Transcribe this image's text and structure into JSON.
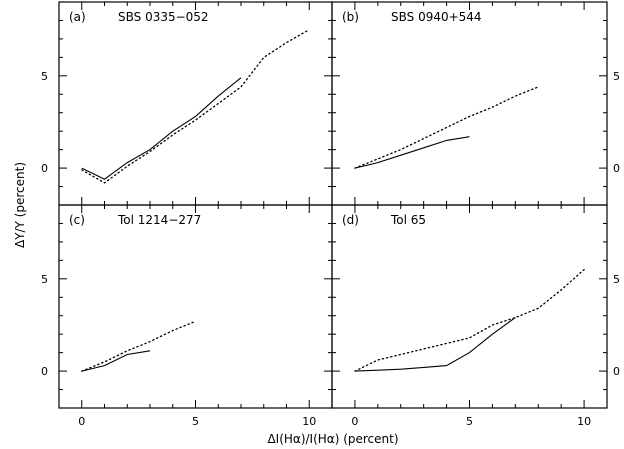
{
  "chart_data": {
    "type": "line",
    "xlabel": "ΔI(Hα)/I(Hα) (percent)",
    "ylabel": "ΔY/Y (percent)",
    "xlim": [
      -1,
      11
    ],
    "ylim": [
      -2,
      9
    ],
    "xticks": [
      0,
      5,
      10
    ],
    "yticks": [
      0,
      5
    ],
    "grid": false,
    "panels": [
      {
        "tag": "(a)",
        "title": "SBS 0335−052",
        "series": [
          {
            "style": "solid",
            "x": [
              0,
              1,
              2,
              3,
              4,
              5,
              6,
              7
            ],
            "y": [
              0,
              -0.6,
              0.3,
              1.0,
              2.0,
              2.8,
              3.9,
              4.9
            ]
          },
          {
            "style": "dotted",
            "x": [
              0,
              1,
              2,
              3,
              4,
              5,
              6,
              7,
              8,
              9,
              10
            ],
            "y": [
              -0.1,
              -0.8,
              0.1,
              0.9,
              1.8,
              2.6,
              3.5,
              4.4,
              6.0,
              6.8,
              7.5
            ]
          }
        ]
      },
      {
        "tag": "(b)",
        "title": "SBS 0940+544",
        "series": [
          {
            "style": "solid",
            "x": [
              0,
              1,
              2,
              3,
              4,
              5
            ],
            "y": [
              0,
              0.3,
              0.7,
              1.1,
              1.5,
              1.7
            ]
          },
          {
            "style": "dotted",
            "x": [
              0,
              1,
              2,
              3,
              4,
              5,
              6,
              7,
              8
            ],
            "y": [
              0,
              0.5,
              1.0,
              1.6,
              2.2,
              2.8,
              3.3,
              3.9,
              4.4
            ]
          }
        ]
      },
      {
        "tag": "(c)",
        "title": "Tol 1214−277",
        "series": [
          {
            "style": "solid",
            "x": [
              0,
              1,
              2,
              3
            ],
            "y": [
              0,
              0.3,
              0.9,
              1.1
            ]
          },
          {
            "style": "dotted",
            "x": [
              0,
              1,
              2,
              3,
              4,
              5
            ],
            "y": [
              0,
              0.5,
              1.1,
              1.6,
              2.2,
              2.7
            ]
          }
        ]
      },
      {
        "tag": "(d)",
        "title": "Tol 65",
        "series": [
          {
            "style": "solid",
            "x": [
              0,
              1,
              2,
              3,
              4,
              5,
              6,
              7
            ],
            "y": [
              0,
              0.05,
              0.1,
              0.2,
              0.3,
              1.0,
              2.0,
              2.9
            ]
          },
          {
            "style": "dotted",
            "x": [
              0,
              1,
              2,
              3,
              4,
              5,
              6,
              7,
              8,
              9,
              10
            ],
            "y": [
              0,
              0.6,
              0.9,
              1.2,
              1.5,
              1.8,
              2.5,
              2.9,
              3.4,
              4.4,
              5.5
            ]
          }
        ]
      }
    ]
  }
}
